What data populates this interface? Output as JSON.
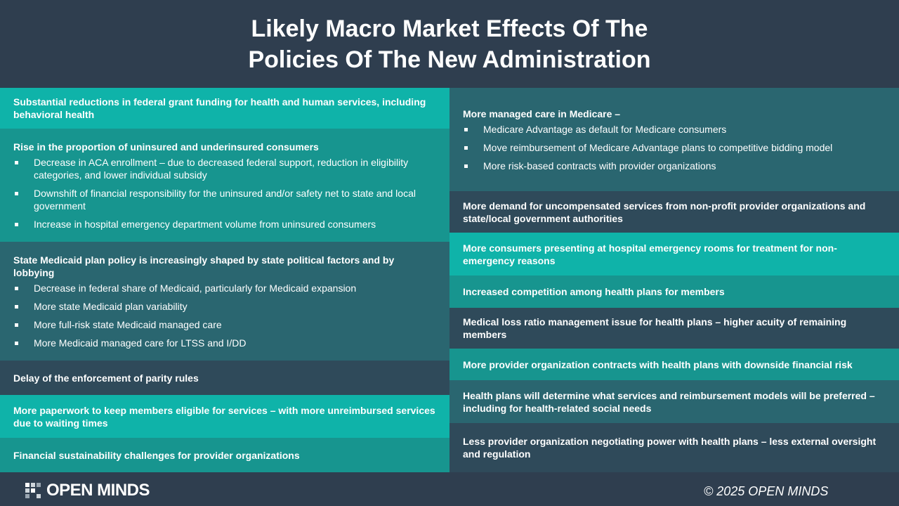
{
  "header": {
    "title_lines": [
      "Likely Macro Market Effects Of The",
      "Policies Of The New Administration"
    ]
  },
  "left": [
    {
      "color": "#0fb3a9",
      "heading": "Substantial reductions in federal grant funding for health and human services, including behavioral health",
      "bullets": []
    },
    {
      "color": "#17958f",
      "heading": "Rise in the proportion of uninsured and underinsured consumers",
      "bullets": [
        "Decrease in ACA enrollment – due to decreased federal support, reduction in eligibility categories, and lower individual subsidy",
        "Downshift of financial responsibility for the uninsured and/or safety net to state and local government",
        "Increase in hospital emergency department volume from uninsured consumers"
      ]
    },
    {
      "color": "#2a6670",
      "heading": "State Medicaid plan policy is increasingly shaped by state political factors and by lobbying",
      "bullets": [
        "Decrease in federal share of Medicaid, particularly for Medicaid expansion",
        "More state Medicaid plan variability",
        "More full-risk state Medicaid managed care",
        "More Medicaid managed care for LTSS and I/DD"
      ]
    },
    {
      "color": "#2f4a5a",
      "heading": "Delay of the enforcement of parity rules",
      "bullets": []
    },
    {
      "color": "#0fb3a9",
      "heading": "More paperwork to keep members eligible for services – with more unreimbursed services due to waiting times",
      "bullets": []
    },
    {
      "color": "#17958f",
      "heading": "Financial sustainability challenges for provider organizations",
      "bullets": []
    }
  ],
  "right": [
    {
      "color": "#2a6670",
      "heading": "More managed care in Medicare –",
      "bullets": [
        "Medicare Advantage as default for Medicare consumers",
        "Move reimbursement of Medicare Advantage plans to competitive bidding model",
        "More risk-based contracts with provider organizations"
      ]
    },
    {
      "color": "#2f4a5a",
      "heading": "More demand for uncompensated services from non-profit provider organizations and state/local government authorities",
      "bullets": []
    },
    {
      "color": "#0fb3a9",
      "heading": "More consumers presenting at hospital emergency rooms for treatment for non-emergency reasons",
      "bullets": []
    },
    {
      "color": "#17958f",
      "heading": "Increased competition among health plans for members",
      "bullets": []
    },
    {
      "color": "#2f4a5a",
      "heading": "Medical loss ratio management issue for health plans – higher acuity of remaining members",
      "bullets": []
    },
    {
      "color": "#17958f",
      "heading": "More provider organization contracts with health plans with downside financial risk",
      "bullets": []
    },
    {
      "color": "#2a6670",
      "heading": "Health plans will determine what services and reimbursement models will be preferred – including for health-related social needs",
      "bullets": []
    },
    {
      "color": "#2f4a5a",
      "heading": "Less provider organization negotiating power with health plans – less external oversight and regulation",
      "bullets": []
    }
  ],
  "footer": {
    "logo": "OPEN MINDS",
    "copyright": "© 2025 OPEN MINDS"
  }
}
